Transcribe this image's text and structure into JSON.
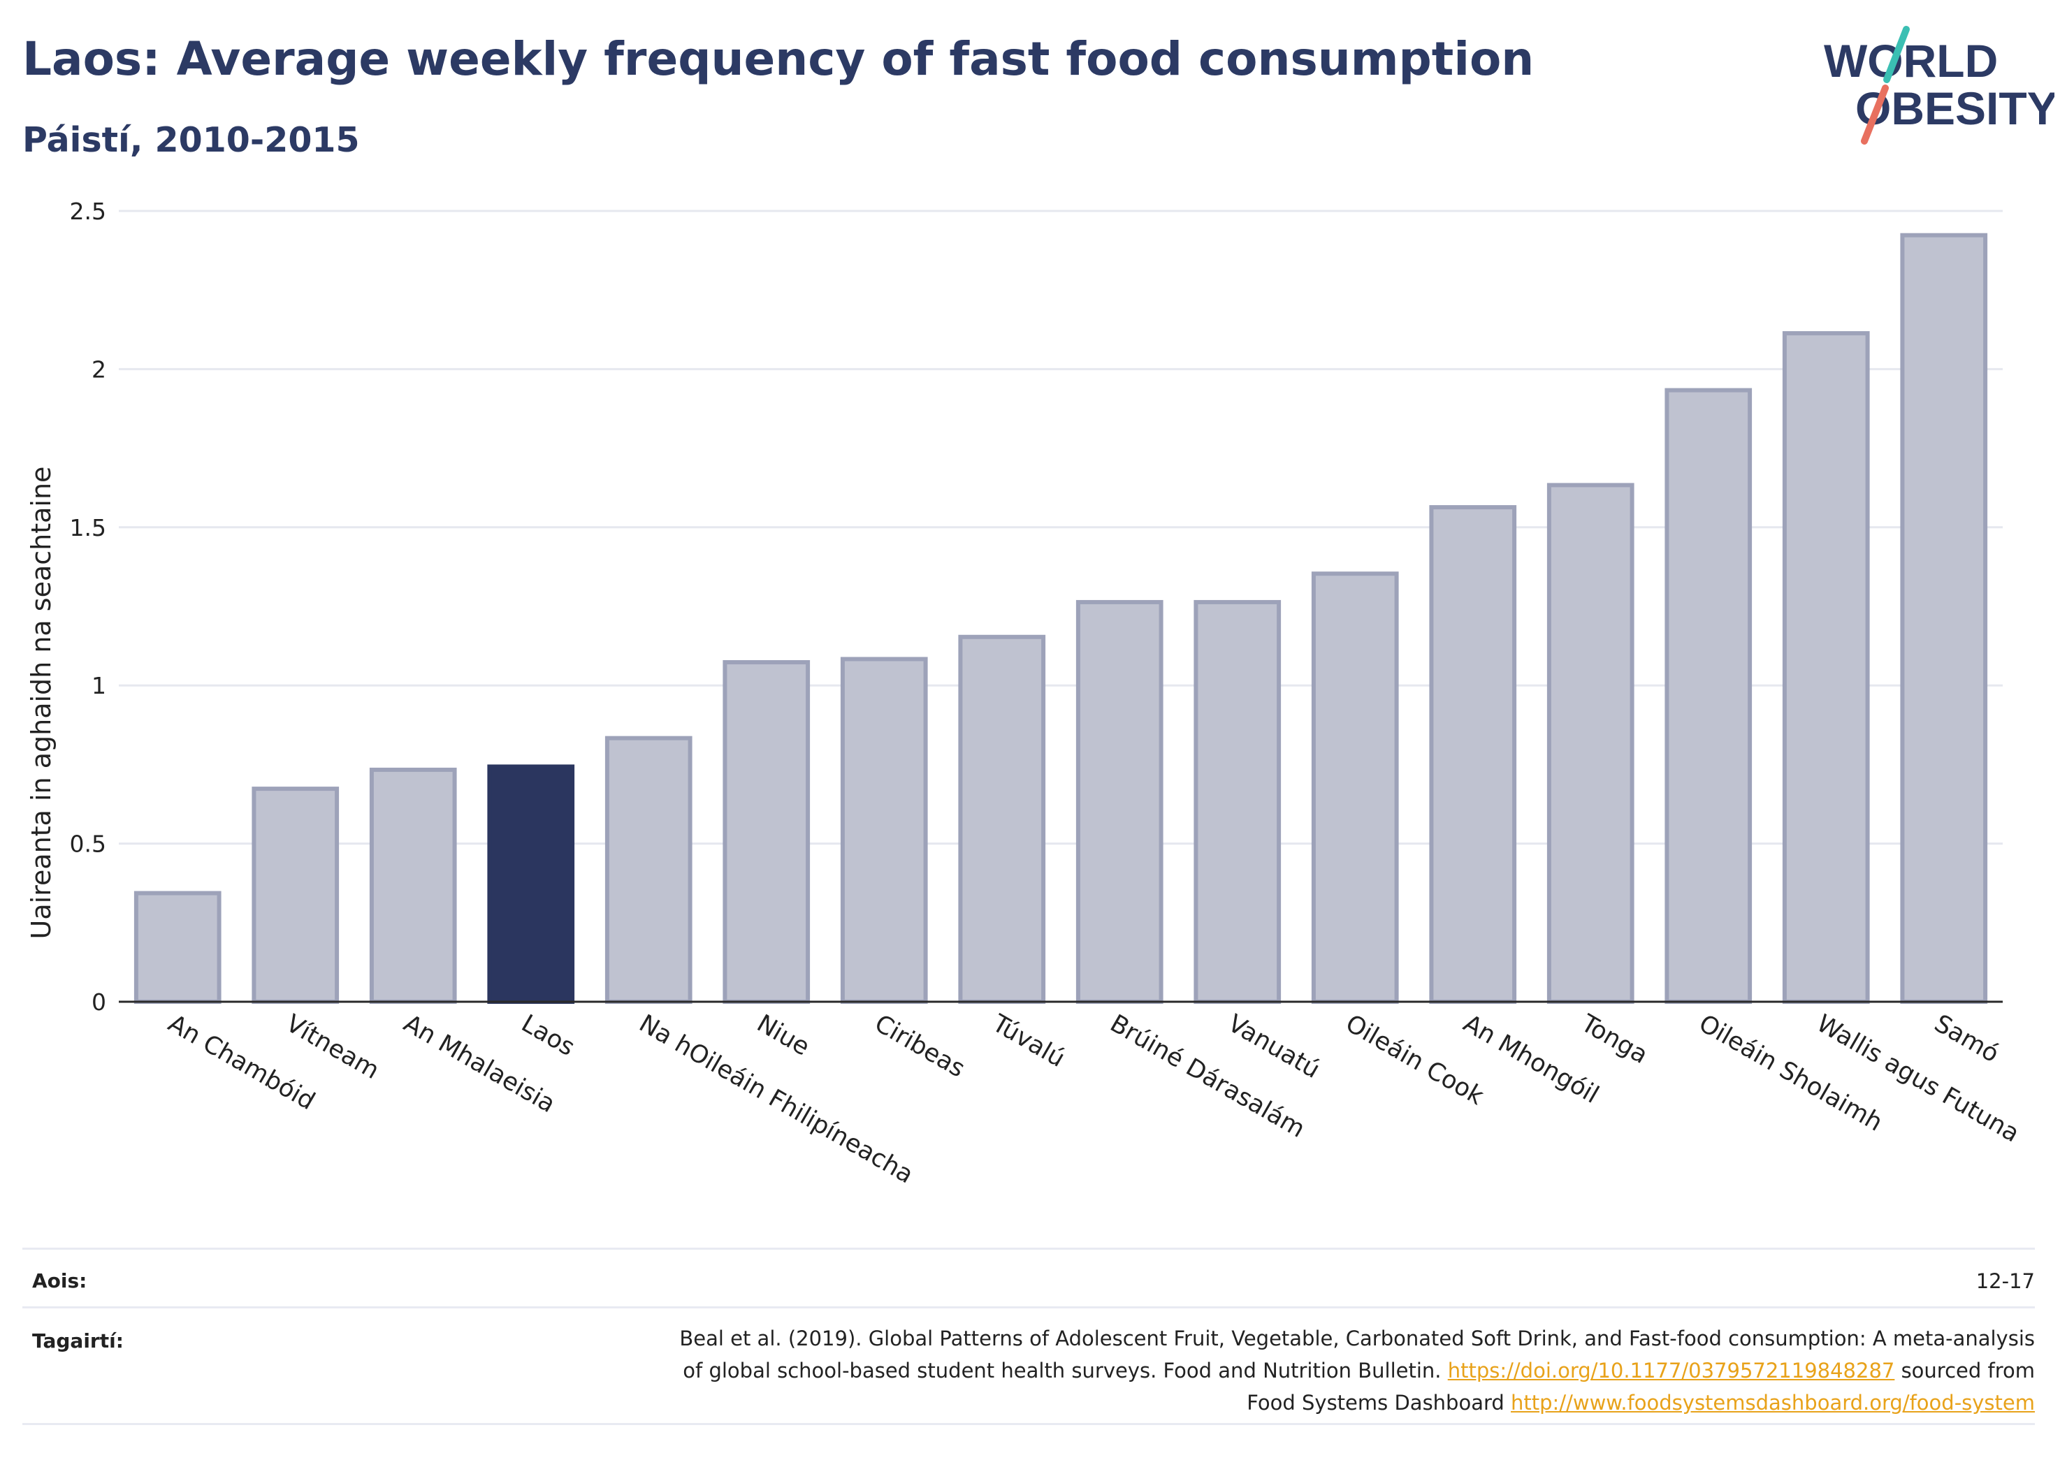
{
  "header": {
    "title": "Laos: Average weekly frequency of fast food consumption",
    "subtitle": "Páistí, 2010-2015"
  },
  "logo": {
    "line1": "WORLD",
    "line2": "OBESITY"
  },
  "colors": {
    "highlight": "#2b365f",
    "bar": "#bfc2d0",
    "bar_stroke": "#9da2b9",
    "grid": "#e6e8ef",
    "logo_teal": "#3bbfb3",
    "logo_coral": "#e8705f",
    "link": "#e8a21a"
  },
  "chart_data": {
    "type": "bar",
    "title": "Laos: Average weekly frequency of fast food consumption",
    "subtitle": "Páistí, 2010-2015",
    "ylabel": "Uaireanta in aghaidh na seachtaine",
    "xlabel": "",
    "ylim": [
      0,
      2.5
    ],
    "yticks": [
      0,
      0.5,
      1,
      1.5,
      2,
      2.5
    ],
    "ytick_labels": [
      "0",
      "0.5",
      "1",
      "1.5",
      "2",
      "2.5"
    ],
    "grid": true,
    "highlight": "Laos",
    "categories": [
      "An Chambóid",
      "Vítneam",
      "An Mhalaeisia",
      "Laos",
      "Na hOileáin Fhilipíneacha",
      "Niue",
      "Ciribeas",
      "Túvalú",
      "Brúiné Dárasalám",
      "Vanuatú",
      "Oileáin Cook",
      "An Mhongóil",
      "Tonga",
      "Oileáin Sholaimh",
      "Wallis agus Futuna",
      "Samó"
    ],
    "values": [
      0.35,
      0.68,
      0.74,
      0.75,
      0.84,
      1.08,
      1.09,
      1.16,
      1.27,
      1.27,
      1.36,
      1.57,
      1.64,
      1.94,
      2.12,
      2.43
    ]
  },
  "meta": {
    "age_label": "Aois:",
    "age_value": "12-17",
    "refs_label": "Tagairtí:",
    "refs_line1": "Beal et al. (2019). Global Patterns of Adolescent Fruit, Vegetable, Carbonated Soft Drink, and Fast-food consumption: A meta-analysis",
    "refs_line2_pre": "of global school-based student health surveys. Food and Nutrition Bulletin.",
    "refs_link1": "https://doi.org/10.1177/0379572119848287",
    "refs_line2_post": "sourced from",
    "refs_line3_pre": "Food Systems Dashboard",
    "refs_link2": "http://www.foodsystemsdashboard.org/food-system"
  }
}
